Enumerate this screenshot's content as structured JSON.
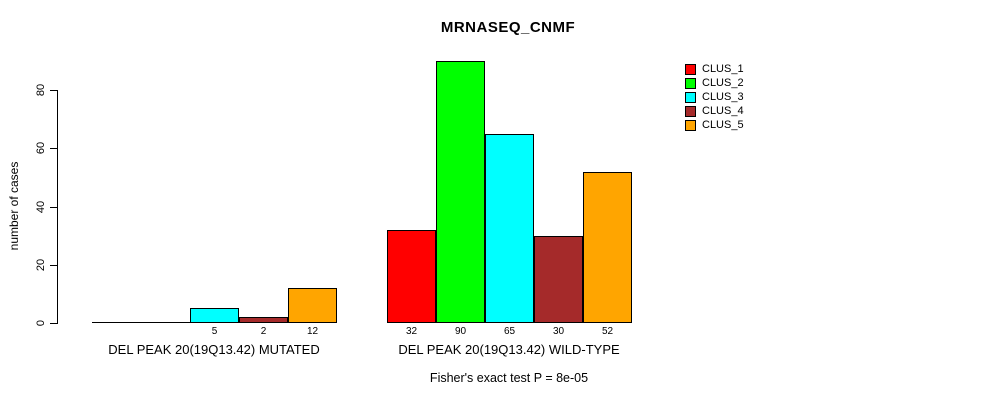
{
  "chart_data": {
    "type": "bar",
    "title": "MRNASEQ_CNMF",
    "ylabel": "number of cases",
    "xlabel": "",
    "ylim": [
      0,
      90
    ],
    "yticks": [
      0,
      20,
      40,
      60,
      80
    ],
    "grid": false,
    "legend_position": "top-right",
    "legend": [
      {
        "name": "CLUS_1",
        "color": "#ff0000"
      },
      {
        "name": "CLUS_2",
        "color": "#00ff00"
      },
      {
        "name": "CLUS_3",
        "color": "#00ffff"
      },
      {
        "name": "CLUS_4",
        "color": "#a52a2a"
      },
      {
        "name": "CLUS_5",
        "color": "#ffa500"
      }
    ],
    "categories": [
      "DEL PEAK 20(19Q13.42) MUTATED",
      "DEL PEAK 20(19Q13.42) WILD-TYPE"
    ],
    "series": [
      {
        "name": "CLUS_1",
        "values": [
          0,
          32
        ]
      },
      {
        "name": "CLUS_2",
        "values": [
          0,
          90
        ]
      },
      {
        "name": "CLUS_3",
        "values": [
          5,
          65
        ]
      },
      {
        "name": "CLUS_4",
        "values": [
          2,
          30
        ]
      },
      {
        "name": "CLUS_5",
        "values": [
          12,
          52
        ]
      }
    ],
    "bar_value_labels_shown": true,
    "annotation": "Fisher's exact test P = 8e-05"
  }
}
